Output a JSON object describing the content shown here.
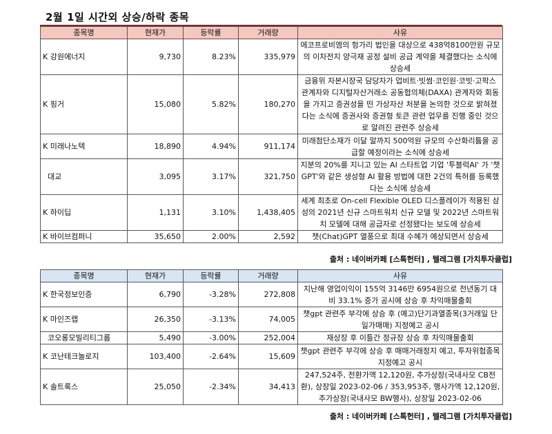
{
  "title": "2월 1일  시간외 상승/하락 종목",
  "headers": {
    "name": "종목명",
    "price": "현재가",
    "change": "등락률",
    "volume": "거래량",
    "reason": "사유"
  },
  "rising": [
    {
      "name": "K 강원에너지",
      "price": "9,730",
      "change": "8.23%",
      "volume": "335,979",
      "reason": "에코프로비엠의 헝가리 법인을 대상으로 438억8100만원 규모의 이차전지 양극재 공정 설비 공급 계약을 체결했다는 소식에 상승세"
    },
    {
      "name": "K 핑거",
      "price": "15,080",
      "change": "5.82%",
      "volume": "180,270",
      "reason": "금융위 자본시장국 담당자가 업비트·빗썸·코인원·코빗·고팍스 관계자와 디지털자산거래소 공동협의체(DAXA) 관계자와 회동을 가지고 증권성을 띤 가상자산 처분을 논의한 것으로 밝혀졌다는 소식에 증권사와 증권형 토큰 관련 업무를 진행 중인 것으로 알려진 관련주 상승세"
    },
    {
      "name": "K 미래나노텍",
      "price": "18,890",
      "change": "4.94%",
      "volume": "911,174",
      "reason": "미래첨단소재가 이달 말까지 500억원 규모의 수산화리튬을 공급할 예정이라는 소식에 상승세"
    },
    {
      "name": "대교",
      "price": "3,095",
      "change": "3.17%",
      "volume": "321,750",
      "reason": "지분의 20%를 지니고 있는 AI 스타트업 기업 '투블럭AI' 가 '챗GPT'와 같은 생성형 AI 활용 방법에 대한 2건의 특허를 등록했다는 소식에 상승세"
    },
    {
      "name": "K 하이딥",
      "price": "1,131",
      "change": "3.10%",
      "volume": "1,438,405",
      "reason": "세계 최초로 On-cell Flexible OLED 디스플레이가 적용된 삼성의 2021년 신규 스마트워치 신규 모델 및 2022년 스마트워치 모델에 대해 공급자로 선정됐다는 보도에 상승세"
    },
    {
      "name": "K 바이브컴퍼니",
      "price": "35,650",
      "change": "2.00%",
      "volume": "2,592",
      "reason": "챗(Chat)GPT 열풍으로 최대 수혜가 예상되면서 상승세"
    }
  ],
  "source1": "출처 : 네이버카페 [스톡헌터] , 텔레그램 [가치투자클럽]",
  "falling": [
    {
      "name": "K 한국정보인증",
      "price": "6,790",
      "change": "-3.28%",
      "volume": "272,808",
      "reason": "지난해 영업이익이 155억 3146만 6954원으로 전년동기 대비 33.1% 증가 공시에 상승 후 차익매물출회"
    },
    {
      "name": "K 마인즈랩",
      "price": "26,350",
      "change": "-3.13%",
      "volume": "74,005",
      "reason": "챗gpt 관련주 부각에 상승 후 (예고)단기과열종목(3거래일 단일가매매) 지정예고 공시"
    },
    {
      "name": "코오롱모빌리티그룹",
      "price": "5,490",
      "change": "-3.00%",
      "volume": "252,004",
      "reason": "재상장 후 이틀간 정규장 상승 후 차익매물출회"
    },
    {
      "name": "K 코난테크놀로지",
      "price": "103,400",
      "change": "-2.64%",
      "volume": "15,609",
      "reason": "챗gpt 관련주 부각에 상승 후 매매거래정지 예고, 투자위험종목 지정예고 공시"
    },
    {
      "name": "K 솔트룩스",
      "price": "25,050",
      "change": "-2.34%",
      "volume": "34,413",
      "reason": "247,524주, 전환가액 12,120원, 추가상장(국내사모 CB전환), 상장일 2023-02-06 / 353,953주, 행사가액 12,120원, 추가상장(국내사모 BW행사), 상장일 2023-02-06"
    }
  ],
  "source2": "출처 : 네이버카페 [스톡헌터] , 텔레그램 [가치투자클럽]",
  "colors": {
    "rising_header": "#f5c7bf",
    "falling_header": "#d9e5f3",
    "rule": "#c00000"
  }
}
